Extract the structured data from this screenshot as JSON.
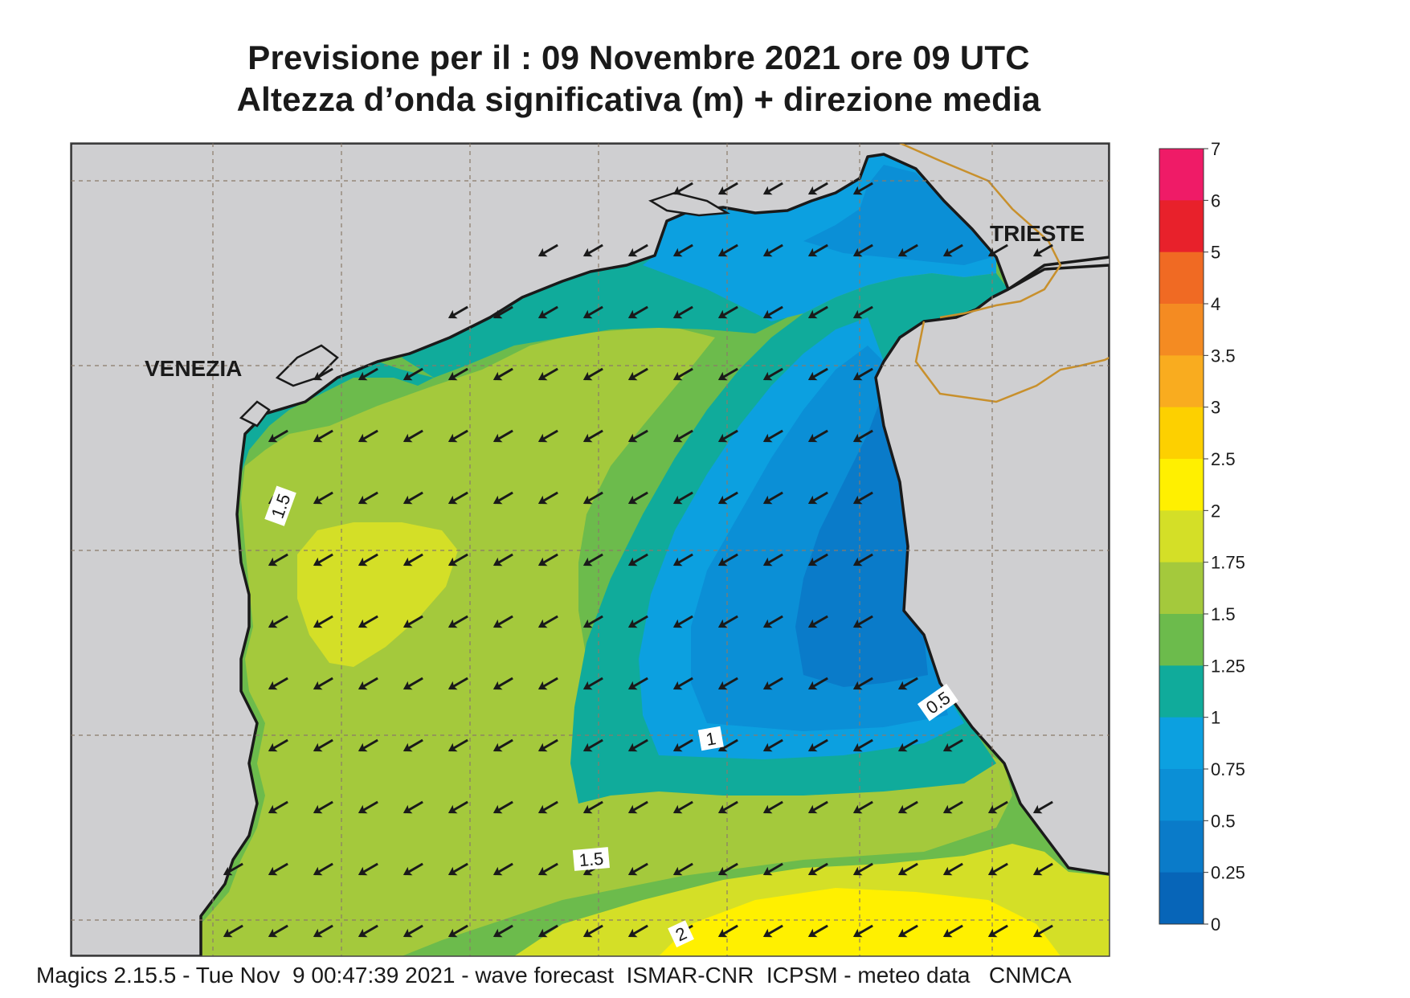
{
  "title": {
    "line1": "Previsione per il  :  09 Novembre  2021   ore 09 UTC",
    "line2": "Altezza d’onda significativa (m) + direzione media"
  },
  "map": {
    "region": "Alto Adriatico",
    "places": [
      {
        "id": "venezia",
        "label": "VENEZIA"
      },
      {
        "id": "trieste",
        "label": "TRIESTE"
      }
    ],
    "contour_labels": [
      "1.5",
      "1",
      "0.5",
      "1.5",
      "2"
    ],
    "mean_wave_direction": "from north-east",
    "colors": {
      "land": "#cfcfd1",
      "coastline": "#1a1a1a",
      "border": "#c8902c",
      "gridline": "#8a7a6a",
      "arrow": "#1a1a1a"
    }
  },
  "colorbar": {
    "ticks": [
      "7",
      "6",
      "5",
      "4",
      "3.5",
      "3",
      "2.5",
      "2",
      "1.75",
      "1.5",
      "1.25",
      "1",
      "0.75",
      "0.5",
      "0.25",
      "0"
    ],
    "bins": [
      {
        "from": 6,
        "to": 7,
        "color": "#ef1b67"
      },
      {
        "from": 5,
        "to": 6,
        "color": "#e8212b"
      },
      {
        "from": 4,
        "to": 5,
        "color": "#f06a23"
      },
      {
        "from": 3.5,
        "to": 4,
        "color": "#f48b22"
      },
      {
        "from": 3,
        "to": 3.5,
        "color": "#f9ac1f"
      },
      {
        "from": 2.5,
        "to": 3,
        "color": "#fdd000"
      },
      {
        "from": 2,
        "to": 2.5,
        "color": "#fff000"
      },
      {
        "from": 1.75,
        "to": 2,
        "color": "#d4df27"
      },
      {
        "from": 1.5,
        "to": 1.75,
        "color": "#a4c93c"
      },
      {
        "from": 1.25,
        "to": 1.5,
        "color": "#6cbb4c"
      },
      {
        "from": 1,
        "to": 1.25,
        "color": "#10ab9b"
      },
      {
        "from": 0.75,
        "to": 1,
        "color": "#0ca0e0"
      },
      {
        "from": 0.5,
        "to": 0.75,
        "color": "#0b8fd6"
      },
      {
        "from": 0.25,
        "to": 0.5,
        "color": "#0a7bc9"
      },
      {
        "from": 0,
        "to": 0.25,
        "color": "#0765b8"
      }
    ]
  },
  "footer": "Magics 2.15.5 - Tue Nov  9 00:47:39 2021 - wave forecast  ISMAR-CNR  ICPSM - meteo data   CNMCA"
}
